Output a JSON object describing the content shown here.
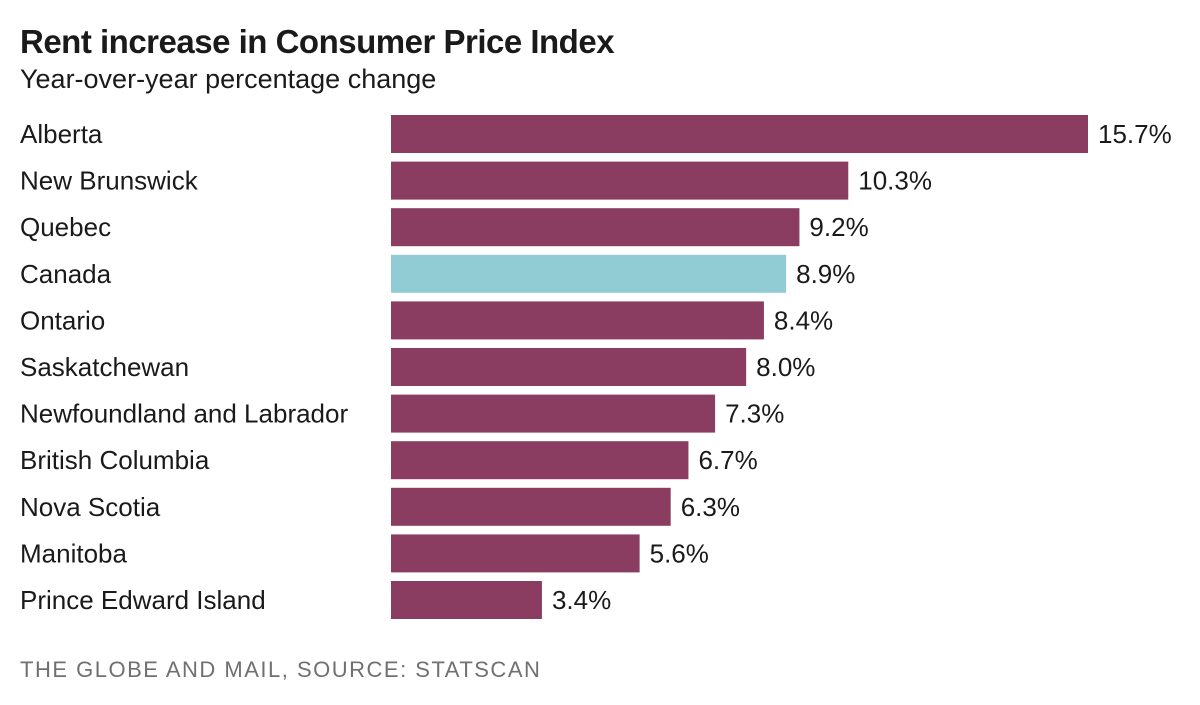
{
  "chart_data": {
    "type": "bar",
    "orientation": "horizontal",
    "title": "Rent increase in Consumer Price Index",
    "subtitle": "Year-over-year percentage change",
    "xlabel": "",
    "ylabel": "",
    "xlim": [
      0,
      15.7
    ],
    "grid": false,
    "categories": [
      "Alberta",
      "New Brunswick",
      "Quebec",
      "Canada",
      "Ontario",
      "Saskatchewan",
      "Newfoundland and Labrador",
      "British Columbia",
      "Nova Scotia",
      "Manitoba",
      "Prince Edward Island"
    ],
    "values": [
      15.7,
      10.3,
      9.2,
      8.9,
      8.4,
      8.0,
      7.3,
      6.7,
      6.3,
      5.6,
      3.4
    ],
    "value_labels": [
      "15.7%",
      "10.3%",
      "9.2%",
      "8.9%",
      "8.4%",
      "8.0%",
      "7.3%",
      "6.7%",
      "6.3%",
      "5.6%",
      "3.4%"
    ],
    "highlight": "Canada",
    "colors": {
      "default_bar": "#8a3d61",
      "highlight_bar": "#91cbd4"
    }
  },
  "footer": {
    "credit": "THE GLOBE AND MAIL, SOURCE: STATSCAN"
  }
}
